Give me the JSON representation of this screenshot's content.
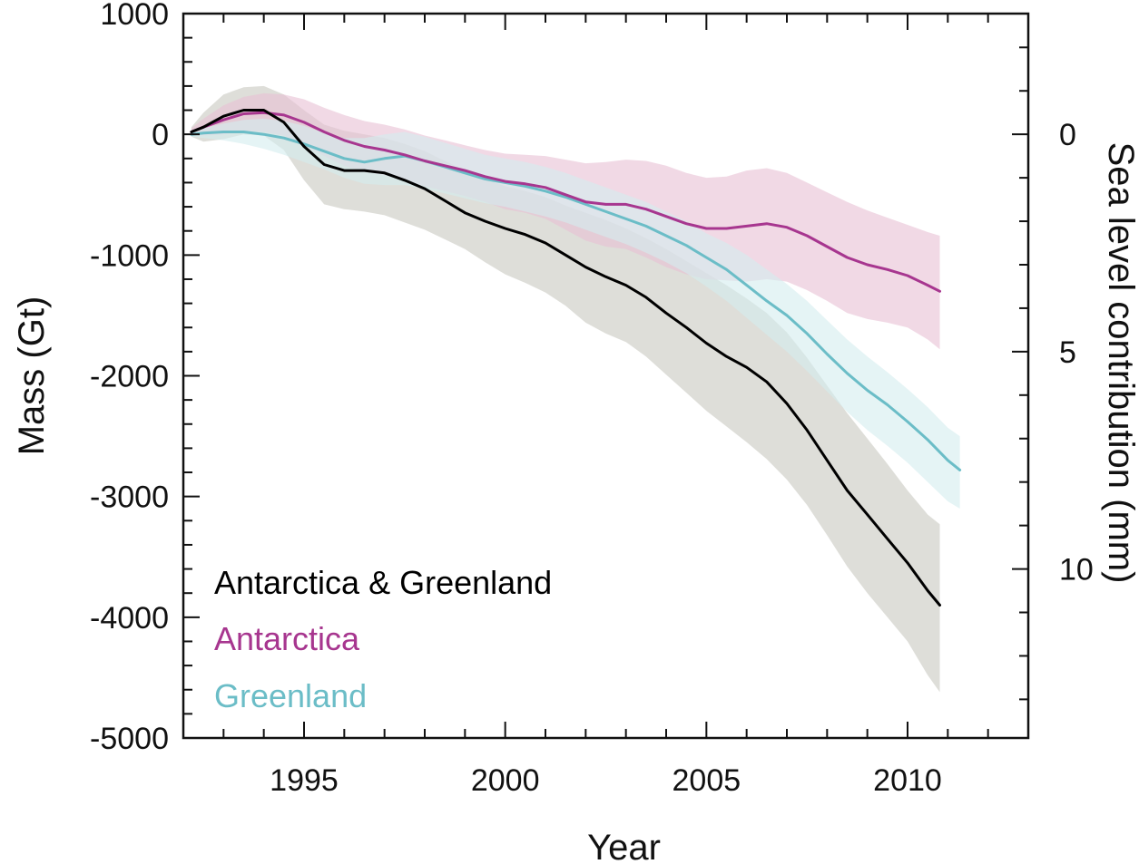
{
  "chart_data": {
    "type": "line",
    "xlabel": "Year",
    "ylabel": "Mass (Gt)",
    "y2label": "Sea level contribution (mm)",
    "xlim": [
      1992,
      2013
    ],
    "ylim": [
      -5000,
      1000
    ],
    "y2lim": [
      0,
      10
    ],
    "xticks": [
      1995,
      2000,
      2005,
      2010
    ],
    "yticks": [
      1000,
      0,
      -1000,
      -2000,
      -3000,
      -4000,
      -5000
    ],
    "y2ticks": [
      0,
      5,
      10
    ],
    "x_minor_step": 1,
    "y_minor_step": 200,
    "y2_minor_step": 1,
    "y2_zero_mass": 0,
    "y2_mass_per_mm": -360,
    "grid": false,
    "legend_position": "bottom-left",
    "series": [
      {
        "name": "Antarctica & Greenland",
        "color": "#000000",
        "band_color": "#c8c8c0",
        "x": [
          1992.2,
          1992.5,
          1993,
          1993.5,
          1994,
          1994.5,
          1995,
          1995.5,
          1996,
          1996.5,
          1997,
          1997.5,
          1998,
          1998.5,
          1999,
          1999.5,
          2000,
          2000.5,
          2001,
          2001.5,
          2002,
          2002.5,
          2003,
          2003.5,
          2004,
          2004.5,
          2005,
          2005.5,
          2006,
          2006.5,
          2007,
          2007.5,
          2008,
          2008.5,
          2009,
          2009.5,
          2010,
          2010.5,
          2010.8
        ],
        "y": [
          20,
          60,
          150,
          200,
          200,
          100,
          -100,
          -250,
          -300,
          -300,
          -320,
          -380,
          -450,
          -550,
          -650,
          -720,
          -780,
          -830,
          -900,
          -1000,
          -1100,
          -1180,
          -1250,
          -1350,
          -1480,
          -1600,
          -1730,
          -1840,
          -1930,
          -2050,
          -2230,
          -2450,
          -2700,
          -2950,
          -3150,
          -3350,
          -3550,
          -3780,
          -3900
        ],
        "y_upper": [
          60,
          180,
          330,
          390,
          400,
          330,
          200,
          80,
          30,
          0,
          -30,
          -80,
          -140,
          -220,
          -300,
          -370,
          -430,
          -470,
          -520,
          -590,
          -650,
          -710,
          -780,
          -860,
          -950,
          -1050,
          -1150,
          -1250,
          -1360,
          -1480,
          -1640,
          -1850,
          -2080,
          -2310,
          -2520,
          -2730,
          -2950,
          -3150,
          -3230
        ],
        "y_lower": [
          -20,
          -60,
          -40,
          0,
          -10,
          -130,
          -380,
          -580,
          -620,
          -640,
          -670,
          -730,
          -790,
          -870,
          -950,
          -1060,
          -1160,
          -1230,
          -1310,
          -1420,
          -1560,
          -1650,
          -1720,
          -1840,
          -1990,
          -2140,
          -2290,
          -2420,
          -2550,
          -2690,
          -2860,
          -3070,
          -3320,
          -3580,
          -3800,
          -4000,
          -4200,
          -4480,
          -4620
        ]
      },
      {
        "name": "Antarctica",
        "color": "#a7368f",
        "band_color": "#e7bfd4",
        "x": [
          1992.2,
          1992.5,
          1993,
          1993.5,
          1994,
          1994.5,
          1995,
          1995.5,
          1996,
          1996.5,
          1997,
          1997.5,
          1998,
          1998.5,
          1999,
          1999.5,
          2000,
          2000.5,
          2001,
          2001.5,
          2002,
          2002.5,
          2003,
          2003.5,
          2004,
          2004.5,
          2005,
          2005.5,
          2006,
          2006.5,
          2007,
          2007.5,
          2008,
          2008.5,
          2009,
          2009.5,
          2010,
          2010.5,
          2010.8
        ],
        "y": [
          20,
          60,
          120,
          170,
          180,
          160,
          100,
          20,
          -50,
          -100,
          -130,
          -170,
          -220,
          -260,
          -300,
          -350,
          -390,
          -410,
          -440,
          -500,
          -560,
          -580,
          -580,
          -620,
          -680,
          -740,
          -780,
          -780,
          -760,
          -740,
          -770,
          -840,
          -930,
          -1020,
          -1080,
          -1120,
          -1170,
          -1250,
          -1300
        ],
        "y_upper": [
          50,
          130,
          240,
          310,
          340,
          330,
          290,
          220,
          160,
          110,
          80,
          40,
          -10,
          -50,
          -90,
          -130,
          -160,
          -170,
          -180,
          -210,
          -240,
          -230,
          -210,
          -220,
          -260,
          -320,
          -360,
          -350,
          -300,
          -280,
          -320,
          -400,
          -480,
          -560,
          -630,
          -690,
          -750,
          -810,
          -840
        ],
        "y_lower": [
          -10,
          -10,
          0,
          30,
          20,
          -10,
          -90,
          -180,
          -260,
          -310,
          -340,
          -380,
          -430,
          -470,
          -510,
          -560,
          -620,
          -650,
          -700,
          -790,
          -880,
          -930,
          -950,
          -1020,
          -1100,
          -1160,
          -1200,
          -1210,
          -1220,
          -1200,
          -1220,
          -1290,
          -1380,
          -1480,
          -1530,
          -1560,
          -1600,
          -1700,
          -1780
        ]
      },
      {
        "name": "Greenland",
        "color": "#6bbdc7",
        "band_color": "#d3ecee",
        "x": [
          1992.2,
          1992.5,
          1993,
          1993.5,
          1994,
          1994.5,
          1995,
          1995.5,
          1996,
          1996.5,
          1997,
          1997.5,
          1998,
          1998.5,
          1999,
          1999.5,
          2000,
          2000.5,
          2001,
          2001.5,
          2002,
          2002.5,
          2003,
          2003.5,
          2004,
          2004.5,
          2005,
          2005.5,
          2006,
          2006.5,
          2007,
          2007.5,
          2008,
          2008.5,
          2009,
          2009.5,
          2010,
          2010.5,
          2011,
          2011.3
        ],
        "y": [
          0,
          10,
          20,
          20,
          0,
          -30,
          -80,
          -140,
          -200,
          -230,
          -200,
          -180,
          -220,
          -270,
          -320,
          -370,
          -400,
          -430,
          -470,
          -520,
          -580,
          -640,
          -700,
          -760,
          -840,
          -920,
          -1020,
          -1120,
          -1250,
          -1380,
          -1500,
          -1650,
          -1820,
          -1980,
          -2120,
          -2240,
          -2380,
          -2530,
          -2700,
          -2780
        ],
        "y_upper": [
          20,
          50,
          90,
          120,
          130,
          110,
          70,
          10,
          -30,
          -30,
          0,
          20,
          -20,
          -70,
          -120,
          -170,
          -200,
          -230,
          -270,
          -320,
          -380,
          -440,
          -500,
          -560,
          -640,
          -720,
          -820,
          -900,
          -1000,
          -1120,
          -1240,
          -1380,
          -1540,
          -1700,
          -1840,
          -1970,
          -2110,
          -2260,
          -2430,
          -2500
        ],
        "y_lower": [
          -20,
          -30,
          -50,
          -80,
          -120,
          -170,
          -230,
          -290,
          -360,
          -410,
          -420,
          -420,
          -450,
          -490,
          -530,
          -570,
          -600,
          -640,
          -680,
          -730,
          -790,
          -850,
          -910,
          -980,
          -1060,
          -1150,
          -1260,
          -1380,
          -1520,
          -1660,
          -1800,
          -1960,
          -2130,
          -2300,
          -2450,
          -2580,
          -2720,
          -2880,
          -3040,
          -3100
        ]
      }
    ]
  }
}
